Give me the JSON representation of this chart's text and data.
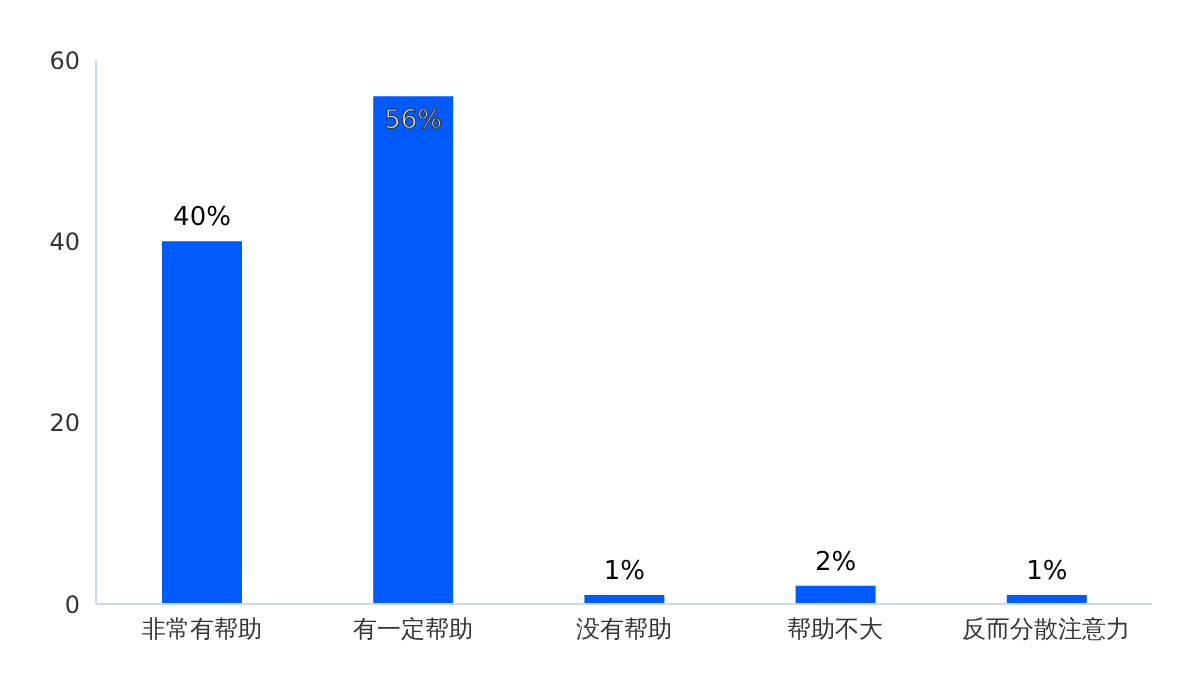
{
  "chart_data": {
    "type": "bar",
    "categories": [
      "非常有帮助",
      "有一定帮助",
      "没有帮助",
      "帮助不大",
      "反而分散注意力"
    ],
    "values": [
      40,
      56,
      1,
      2,
      1
    ],
    "value_labels": [
      "40%",
      "56%",
      "1%",
      "2%",
      "1%"
    ],
    "color": "#005bff",
    "ylim": [
      0,
      60
    ],
    "yticks": [
      0,
      20,
      40,
      60
    ],
    "grid": false,
    "legend": false
  }
}
